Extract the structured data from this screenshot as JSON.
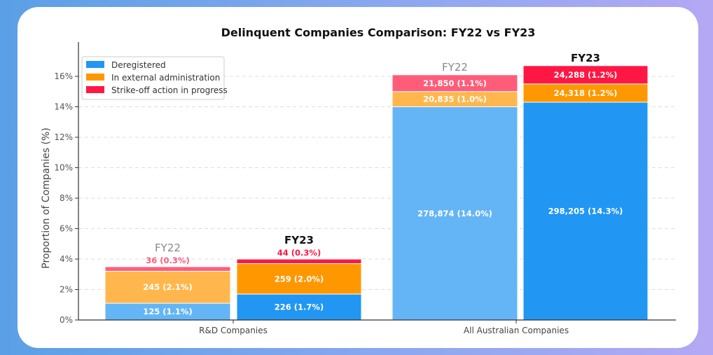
{
  "chart_data": {
    "type": "stacked-bar",
    "title": "Delinquent Companies Comparison: FY22 vs FY23",
    "ylabel": "Proportion of Companies (%)",
    "xlabel": "",
    "ylim": [
      0,
      17
    ],
    "yticks": [
      "0%",
      "2%",
      "4%",
      "6%",
      "8%",
      "10%",
      "12%",
      "14%",
      "16%"
    ],
    "ytick_values": [
      0,
      2,
      4,
      6,
      8,
      10,
      12,
      14,
      16
    ],
    "grid": true,
    "legend_position": "top-left",
    "categories": [
      "R&D Companies",
      "All Australian Companies"
    ],
    "groups": [
      "FY22",
      "FY23"
    ],
    "series": [
      {
        "name": "Deregistered",
        "color_fy22": "#64B5F6",
        "color_fy23": "#2196F3",
        "values": [
          [
            1.1,
            1.7
          ],
          [
            14.0,
            14.3
          ]
        ],
        "labels": [
          [
            "125 (1.1%)",
            "226 (1.7%)"
          ],
          [
            "278,874 (14.0%)",
            "298,205 (14.3%)"
          ]
        ]
      },
      {
        "name": "In external administration",
        "color_fy22": "#FFB74D",
        "color_fy23": "#FF9800",
        "values": [
          [
            2.1,
            2.0
          ],
          [
            1.0,
            1.2
          ]
        ],
        "labels": [
          [
            "245 (2.1%)",
            "259 (2.0%)"
          ],
          [
            "20,835 (1.0%)",
            "24,318 (1.2%)"
          ]
        ]
      },
      {
        "name": "Strike-off action in progress",
        "color_fy22": "#FF5C7A",
        "color_fy23": "#FF1744",
        "values": [
          [
            0.3,
            0.3
          ],
          [
            1.1,
            1.2
          ]
        ],
        "labels": [
          [
            "36 (0.3%)",
            "44 (0.3%)"
          ],
          [
            "21,850 (1.1%)",
            "24,288 (1.2%)"
          ]
        ]
      }
    ]
  }
}
